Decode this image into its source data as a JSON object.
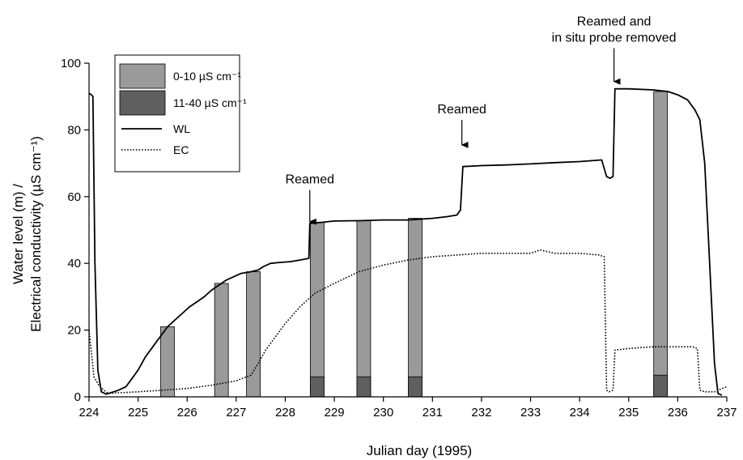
{
  "chart_data": {
    "type": "line",
    "xlabel": "Julian day (1995)",
    "ylabel_line1": "Water level (m) /",
    "ylabel_line2": "Electrical conductivity (µS cm⁻¹)",
    "xlim": [
      224,
      237
    ],
    "ylim": [
      0,
      100
    ],
    "x_ticks": [
      "224",
      "225",
      "226",
      "227",
      "228",
      "229",
      "230",
      "231",
      "232",
      "233",
      "234",
      "235",
      "236",
      "237"
    ],
    "y_ticks": [
      "0",
      "20",
      "40",
      "60",
      "80",
      "100"
    ],
    "grid": false,
    "legend_position": "top-left",
    "legend": [
      {
        "label": "0-10 µS cm⁻¹",
        "kind": "bar",
        "color": "#9a9a9a"
      },
      {
        "label": "11-40 µS cm⁻¹",
        "kind": "bar",
        "color": "#5f5f5f"
      },
      {
        "label": "WL",
        "kind": "line",
        "style": "solid"
      },
      {
        "label": "EC",
        "kind": "line",
        "style": "dotted"
      }
    ],
    "series": [
      {
        "name": "WL",
        "style": "solid",
        "color": "#000000",
        "points": [
          [
            224.0,
            91
          ],
          [
            224.05,
            90.5
          ],
          [
            224.08,
            90
          ],
          [
            224.12,
            40
          ],
          [
            224.18,
            8
          ],
          [
            224.25,
            1.5
          ],
          [
            224.35,
            0.8
          ],
          [
            224.5,
            1.5
          ],
          [
            224.6,
            2
          ],
          [
            224.75,
            3
          ],
          [
            224.9,
            6
          ],
          [
            225.0,
            8
          ],
          [
            225.15,
            12
          ],
          [
            225.3,
            15
          ],
          [
            225.45,
            18
          ],
          [
            225.6,
            21
          ],
          [
            225.75,
            23
          ],
          [
            225.9,
            25
          ],
          [
            226.05,
            27
          ],
          [
            226.2,
            28.5
          ],
          [
            226.35,
            30
          ],
          [
            226.5,
            32
          ],
          [
            226.65,
            33.5
          ],
          [
            226.8,
            35
          ],
          [
            226.95,
            36
          ],
          [
            227.1,
            37
          ],
          [
            227.3,
            37.5
          ],
          [
            227.45,
            38
          ],
          [
            227.55,
            39
          ],
          [
            227.7,
            40
          ],
          [
            227.9,
            40.3
          ],
          [
            228.1,
            40.5
          ],
          [
            228.3,
            41
          ],
          [
            228.48,
            41.5
          ],
          [
            228.5,
            52
          ],
          [
            228.75,
            52.3
          ],
          [
            229.0,
            52.7
          ],
          [
            229.5,
            52.8
          ],
          [
            230.0,
            53
          ],
          [
            230.5,
            53
          ],
          [
            231.0,
            53.5
          ],
          [
            231.3,
            54
          ],
          [
            231.5,
            54.5
          ],
          [
            231.57,
            56
          ],
          [
            231.62,
            69
          ],
          [
            232.0,
            69.3
          ],
          [
            232.5,
            69.5
          ],
          [
            233.0,
            69.8
          ],
          [
            233.5,
            70.2
          ],
          [
            234.0,
            70.5
          ],
          [
            234.45,
            71
          ],
          [
            234.55,
            66
          ],
          [
            234.62,
            65.5
          ],
          [
            234.68,
            66
          ],
          [
            234.72,
            92.3
          ],
          [
            235.0,
            92.3
          ],
          [
            235.5,
            92
          ],
          [
            235.8,
            91.5
          ],
          [
            236.0,
            90.5
          ],
          [
            236.2,
            89
          ],
          [
            236.35,
            86
          ],
          [
            236.45,
            83
          ],
          [
            236.55,
            70
          ],
          [
            236.65,
            40
          ],
          [
            236.75,
            10
          ],
          [
            236.82,
            1
          ],
          [
            236.9,
            0.5
          ]
        ]
      },
      {
        "name": "EC",
        "style": "dotted",
        "color": "#000000",
        "points": [
          [
            224.0,
            20
          ],
          [
            224.1,
            6
          ],
          [
            224.2,
            3.5
          ],
          [
            224.3,
            2
          ],
          [
            224.4,
            1
          ],
          [
            224.55,
            1.2
          ],
          [
            224.75,
            1.3
          ],
          [
            225.0,
            1.5
          ],
          [
            225.5,
            2
          ],
          [
            226.0,
            2.5
          ],
          [
            226.5,
            3.5
          ],
          [
            227.0,
            4.8
          ],
          [
            227.3,
            6.5
          ],
          [
            227.45,
            10
          ],
          [
            227.6,
            14
          ],
          [
            227.8,
            18
          ],
          [
            228.0,
            22
          ],
          [
            228.3,
            27
          ],
          [
            228.6,
            31
          ],
          [
            229.0,
            34
          ],
          [
            229.5,
            37.5
          ],
          [
            230.0,
            39.5
          ],
          [
            230.5,
            41
          ],
          [
            231.0,
            42
          ],
          [
            231.5,
            42.5
          ],
          [
            232.0,
            43
          ],
          [
            232.5,
            43
          ],
          [
            233.0,
            43
          ],
          [
            233.2,
            44
          ],
          [
            233.5,
            43
          ],
          [
            234.0,
            43
          ],
          [
            234.4,
            42.5
          ],
          [
            234.5,
            42
          ],
          [
            234.55,
            2
          ],
          [
            234.6,
            1.5
          ],
          [
            234.68,
            2
          ],
          [
            234.72,
            14
          ],
          [
            235.0,
            14.5
          ],
          [
            235.5,
            15
          ],
          [
            236.0,
            15
          ],
          [
            236.3,
            15
          ],
          [
            236.4,
            14.5
          ],
          [
            236.45,
            2
          ],
          [
            236.55,
            1.5
          ],
          [
            236.75,
            1.5
          ],
          [
            236.9,
            2.5
          ],
          [
            237.0,
            3
          ]
        ]
      }
    ],
    "bars": [
      {
        "day": 225.6,
        "total": 21,
        "dark": 0
      },
      {
        "day": 226.7,
        "total": 34,
        "dark": 0
      },
      {
        "day": 227.35,
        "total": 37.5,
        "dark": 0
      },
      {
        "day": 228.65,
        "total": 52.3,
        "dark": 6
      },
      {
        "day": 229.6,
        "total": 52.8,
        "dark": 6
      },
      {
        "day": 230.65,
        "total": 53.5,
        "dark": 6
      },
      {
        "day": 235.65,
        "total": 91.5,
        "dark": 6.5
      }
    ],
    "bar_width_days": 0.28,
    "annotations": [
      {
        "lines": [
          "Reamed"
        ],
        "x": 228.5,
        "y_arrow_tip": 52.5,
        "y_arrow_tail": 62
      },
      {
        "lines": [
          "Reamed"
        ],
        "x": 231.6,
        "y_arrow_tip": 75.5,
        "y_arrow_tail": 83
      },
      {
        "lines": [
          "Reamed and",
          "in situ probe removed"
        ],
        "x": 234.7,
        "y_arrow_tip": 94.5,
        "y_arrow_tail": 104.5
      }
    ],
    "colors": {
      "light_bar": "#9a9a9a",
      "dark_bar": "#5f5f5f",
      "line": "#000000"
    }
  }
}
